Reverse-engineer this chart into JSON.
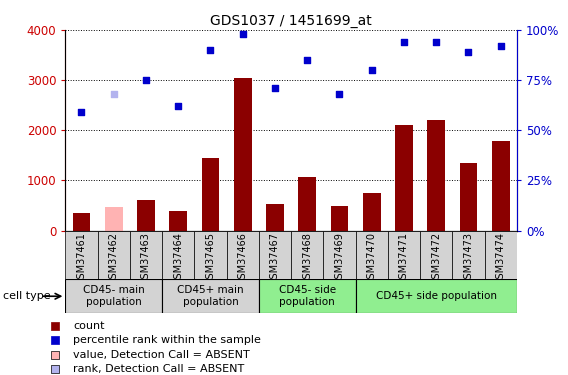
{
  "title": "GDS1037 / 1451699_at",
  "samples": [
    "GSM37461",
    "GSM37462",
    "GSM37463",
    "GSM37464",
    "GSM37465",
    "GSM37466",
    "GSM37467",
    "GSM37468",
    "GSM37469",
    "GSM37470",
    "GSM37471",
    "GSM37472",
    "GSM37473",
    "GSM37474"
  ],
  "bar_values": [
    350,
    480,
    620,
    400,
    1450,
    3050,
    530,
    1060,
    500,
    760,
    2100,
    2200,
    1350,
    1780
  ],
  "bar_absent": [
    false,
    true,
    false,
    false,
    false,
    false,
    false,
    false,
    false,
    false,
    false,
    false,
    false,
    false
  ],
  "scatter_pct": [
    59,
    68,
    75,
    62,
    90,
    98,
    71,
    85,
    68,
    80,
    94,
    94,
    89,
    92
  ],
  "scatter_absent": [
    false,
    true,
    false,
    false,
    false,
    false,
    false,
    false,
    false,
    false,
    false,
    false,
    false,
    false
  ],
  "bar_color_normal": "#8b0000",
  "bar_color_absent": "#ffb3b3",
  "scatter_color_normal": "#0000cc",
  "scatter_color_absent": "#b3b3ee",
  "ylim_left": [
    0,
    4000
  ],
  "ylim_right": [
    0,
    100
  ],
  "yticks_left": [
    0,
    1000,
    2000,
    3000,
    4000
  ],
  "yticks_right": [
    0,
    25,
    50,
    75,
    100
  ],
  "ytick_labels_right": [
    "0%",
    "25%",
    "50%",
    "75%",
    "100%"
  ],
  "groups": [
    {
      "label": "CD45- main\npopulation",
      "start": 0,
      "end": 2,
      "color": "#d3d3d3"
    },
    {
      "label": "CD45+ main\npopulation",
      "start": 3,
      "end": 5,
      "color": "#d3d3d3"
    },
    {
      "label": "CD45- side\npopulation",
      "start": 6,
      "end": 8,
      "color": "#90ee90"
    },
    {
      "label": "CD45+ side population",
      "start": 9,
      "end": 13,
      "color": "#90ee90"
    }
  ],
  "cell_type_label": "cell type",
  "legend_items": [
    {
      "label": "count",
      "color": "#8b0000",
      "marker": "s"
    },
    {
      "label": "percentile rank within the sample",
      "color": "#0000cc",
      "marker": "s"
    },
    {
      "label": "value, Detection Call = ABSENT",
      "color": "#ffb3b3",
      "marker": "s"
    },
    {
      "label": "rank, Detection Call = ABSENT",
      "color": "#b3b3ee",
      "marker": "s"
    }
  ],
  "background_color": "#ffffff",
  "sample_box_color": "#d3d3d3"
}
